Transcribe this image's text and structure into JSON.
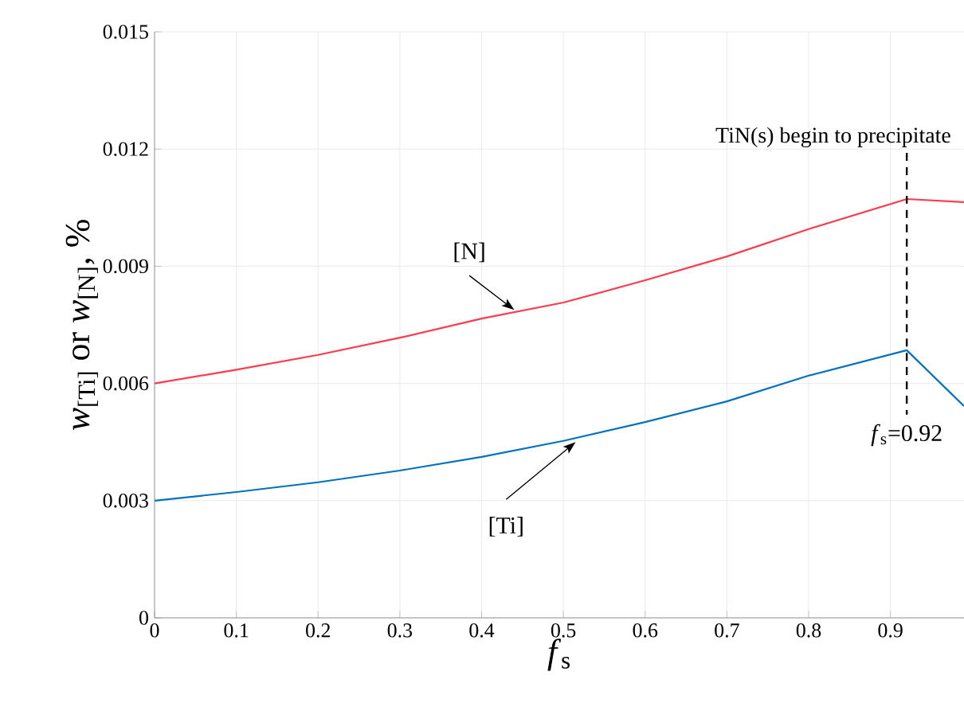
{
  "chart_data": {
    "type": "line",
    "xlabel": "*f*$_{s}$",
    "ylabel": "*w*$_{[Ti]}$ or *w*$_{[N]}$, %",
    "x": [
      0,
      0.1,
      0.2,
      0.3,
      0.4,
      0.5,
      0.6,
      0.7,
      0.8,
      0.92,
      0.99
    ],
    "series": [
      {
        "name": "[N]",
        "color": "#ff3b4e",
        "values": [
          0.006,
          0.00635,
          0.00673,
          0.00717,
          0.00766,
          0.00807,
          0.00864,
          0.00925,
          0.00995,
          0.01072,
          0.01064
        ]
      },
      {
        "name": "[Ti]",
        "color": "#0072bd",
        "values": [
          0.003,
          0.00322,
          0.00347,
          0.00377,
          0.00412,
          0.00453,
          0.00501,
          0.00554,
          0.0062,
          0.00685,
          0.00542
        ]
      }
    ],
    "xlim": [
      0,
      0.99
    ],
    "ylim": [
      0,
      0.015
    ],
    "xticks": [
      0,
      0.1,
      0.2,
      0.3,
      0.4,
      0.5,
      0.6,
      0.7,
      0.8,
      0.9
    ],
    "yticks": [
      0,
      0.003,
      0.006,
      0.009,
      0.012,
      0.015
    ],
    "ref_lines": [
      {
        "axis": "x",
        "value": 0.92,
        "label": "TiN(s) begin to precipitate",
        "color": "#000000",
        "line_style": "dashed"
      }
    ],
    "annotations": [
      "*f*$_{s}$=0.92"
    ],
    "grid": true,
    "legend": false,
    "marker": "none",
    "line_style": "solid"
  }
}
